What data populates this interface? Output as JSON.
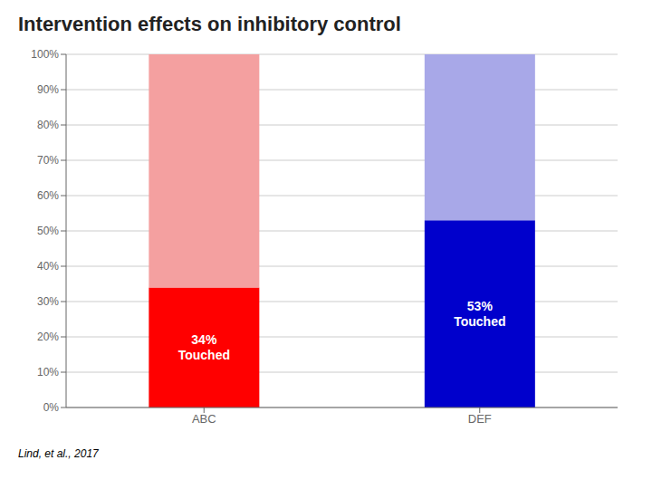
{
  "chart_data": {
    "type": "bar",
    "title": "Intervention effects on inhibitory control",
    "annotations": [
      "Lind, et al., 2017"
    ],
    "categories": [
      "ABC",
      "DEF"
    ],
    "stacked": true,
    "series": [
      {
        "colors": [
          "#ff0000",
          "#0000cc"
        ],
        "values": [
          34,
          53
        ],
        "value_labels": [
          "34%\nTouched",
          "53%\nTouched"
        ]
      },
      {
        "colors": [
          "#f4a0a0",
          "#a8a8e8"
        ],
        "values": [
          66,
          47
        ]
      }
    ],
    "ylim": [
      0,
      100
    ],
    "yticks": [
      {
        "value": 0,
        "label": "0%"
      },
      {
        "value": 10,
        "label": "10%"
      },
      {
        "value": 20,
        "label": "20%"
      },
      {
        "value": 30,
        "label": "30%"
      },
      {
        "value": 40,
        "label": "40%"
      },
      {
        "value": 50,
        "label": "50%"
      },
      {
        "value": 60,
        "label": "60%"
      },
      {
        "value": 70,
        "label": "70%"
      },
      {
        "value": 80,
        "label": "80%"
      },
      {
        "value": 90,
        "label": "90%"
      },
      {
        "value": 100,
        "label": "100%"
      }
    ],
    "grid": true,
    "data_labels": true
  }
}
